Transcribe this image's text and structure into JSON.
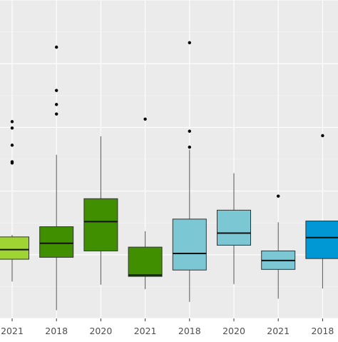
{
  "chart_data": {
    "type": "boxplot",
    "panel_background": "#ebebeb",
    "grid": true,
    "legend": "none",
    "y_axis_labels_visible": false,
    "categories": [
      "2021",
      "2018",
      "2020",
      "2021",
      "2018",
      "2020",
      "2021",
      "2018"
    ],
    "boxes": [
      {
        "category": "2021",
        "color": "#9fd433",
        "lower_whisker": 58,
        "q1": 93,
        "median": 108,
        "q3": 128,
        "upper_whisker": 131,
        "outliers": [
          244,
          246,
          272,
          299,
          309
        ],
        "partially_visible": true
      },
      {
        "category": "2018",
        "color": "#3f8f00",
        "lower_whisker": 13,
        "q1": 96,
        "median": 118,
        "q3": 144,
        "upper_whisker": 257,
        "outliers": [
          321,
          336,
          358,
          426
        ],
        "partially_visible": false
      },
      {
        "category": "2020",
        "color": "#3f8f00",
        "lower_whisker": 53,
        "q1": 106,
        "median": 152,
        "q3": 188,
        "upper_whisker": 286,
        "outliers": [],
        "partially_visible": false
      },
      {
        "category": "2021",
        "color": "#3f8f00",
        "lower_whisker": 46,
        "q1": 66,
        "median": 68,
        "q3": 112,
        "upper_whisker": 137,
        "outliers": [
          313
        ],
        "partially_visible": false
      },
      {
        "category": "2018",
        "color": "#7bc7d4",
        "lower_whisker": 26,
        "q1": 76,
        "median": 102,
        "q3": 156,
        "upper_whisker": 265,
        "outliers": [
          269,
          294,
          433
        ],
        "partially_visible": false
      },
      {
        "category": "2020",
        "color": "#7bc7d4",
        "lower_whisker": 54,
        "q1": 115,
        "median": 134,
        "q3": 170,
        "upper_whisker": 228,
        "outliers": [],
        "partially_visible": false
      },
      {
        "category": "2021",
        "color": "#7bc7d4",
        "lower_whisker": 31,
        "q1": 77,
        "median": 91,
        "q3": 106,
        "upper_whisker": 151,
        "outliers": [
          192
        ],
        "partially_visible": false
      },
      {
        "category": "2018",
        "color": "#0098d4",
        "lower_whisker": 47,
        "q1": 94,
        "median": 127,
        "q3": 153,
        "upper_whisker": 153,
        "outliers": [
          287
        ],
        "partially_visible": true
      }
    ],
    "ylim": [
      0,
      500
    ]
  }
}
